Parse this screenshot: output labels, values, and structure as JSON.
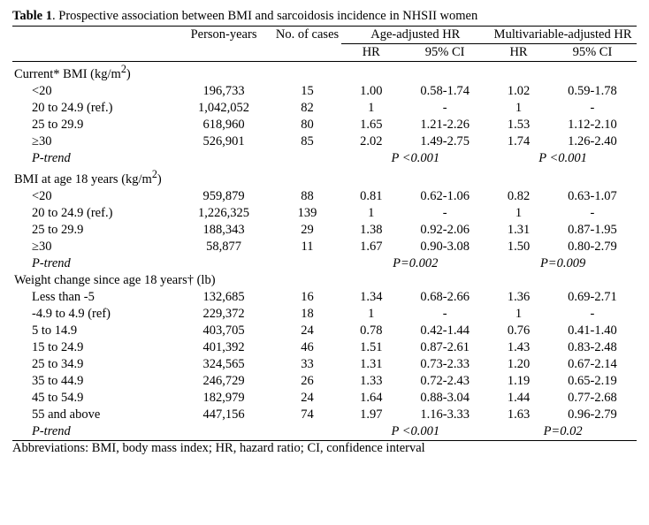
{
  "title_label": "Table 1",
  "title_rest": ". Prospective association between BMI and sarcoidosis incidence in NHSII women",
  "head": {
    "py": "Person-years",
    "nc": "No. of cases",
    "age": "Age-adjusted HR",
    "mv": "Multivariable-adjusted HR",
    "hr": "HR",
    "ci": "95% CI"
  },
  "sections": [
    {
      "label_html": "Current* BMI (kg/m<sup>2</sup>)",
      "rows": [
        {
          "cat": "<20",
          "py": "196,733",
          "n": "15",
          "ahr": "1.00",
          "aci": "0.58-1.74",
          "mhr": "1.02",
          "mci": "0.59-1.78"
        },
        {
          "cat": "20 to 24.9 (ref.)",
          "py": "1,042,052",
          "n": "82",
          "ahr": "1",
          "aci": "-",
          "mhr": "1",
          "mci": "-"
        },
        {
          "cat": "25 to 29.9",
          "py": "618,960",
          "n": "80",
          "ahr": "1.65",
          "aci": "1.21-2.26",
          "mhr": "1.53",
          "mci": "1.12-2.10"
        },
        {
          "cat": "≥30",
          "py": "526,901",
          "n": "85",
          "ahr": "2.02",
          "aci": "1.49-2.75",
          "mhr": "1.74",
          "mci": "1.26-2.40"
        }
      ],
      "ptrend_label": "P-trend",
      "ptrend_age": "P <0.001",
      "ptrend_mv": "P <0.001"
    },
    {
      "label_html": "BMI at age 18 years (kg/m<sup>2</sup>)",
      "rows": [
        {
          "cat": "<20",
          "py": "959,879",
          "n": "88",
          "ahr": "0.81",
          "aci": "0.62-1.06",
          "mhr": "0.82",
          "mci": "0.63-1.07"
        },
        {
          "cat": "20 to 24.9 (ref.)",
          "py": "1,226,325",
          "n": "139",
          "ahr": "1",
          "aci": "-",
          "mhr": "1",
          "mci": "-"
        },
        {
          "cat": "25 to 29.9",
          "py": "188,343",
          "n": "29",
          "ahr": "1.38",
          "aci": "0.92-2.06",
          "mhr": "1.31",
          "mci": "0.87-1.95"
        },
        {
          "cat": "≥30",
          "py": "58,877",
          "n": "11",
          "ahr": "1.67",
          "aci": "0.90-3.08",
          "mhr": "1.50",
          "mci": "0.80-2.79"
        }
      ],
      "ptrend_label": "P-trend",
      "ptrend_age": "P=0.002",
      "ptrend_mv": "P=0.009"
    },
    {
      "label_html": "Weight change since age 18 years† (lb)",
      "rows": [
        {
          "cat": "Less than -5",
          "py": "132,685",
          "n": "16",
          "ahr": "1.34",
          "aci": "0.68-2.66",
          "mhr": "1.36",
          "mci": "0.69-2.71"
        },
        {
          "cat": "-4.9 to 4.9 (ref)",
          "py": "229,372",
          "n": "18",
          "ahr": "1",
          "aci": "-",
          "mhr": "1",
          "mci": "-"
        },
        {
          "cat": "5 to 14.9",
          "py": "403,705",
          "n": "24",
          "ahr": "0.78",
          "aci": "0.42-1.44",
          "mhr": "0.76",
          "mci": "0.41-1.40"
        },
        {
          "cat": "15 to 24.9",
          "py": "401,392",
          "n": "46",
          "ahr": "1.51",
          "aci": "0.87-2.61",
          "mhr": "1.43",
          "mci": "0.83-2.48"
        },
        {
          "cat": "25 to 34.9",
          "py": "324,565",
          "n": "33",
          "ahr": "1.31",
          "aci": "0.73-2.33",
          "mhr": "1.20",
          "mci": "0.67-2.14"
        },
        {
          "cat": "35 to 44.9",
          "py": "246,729",
          "n": "26",
          "ahr": "1.33",
          "aci": "0.72-2.43",
          "mhr": "1.19",
          "mci": "0.65-2.19"
        },
        {
          "cat": "45 to 54.9",
          "py": "182,979",
          "n": "24",
          "ahr": "1.64",
          "aci": "0.88-3.04",
          "mhr": "1.44",
          "mci": "0.77-2.68"
        },
        {
          "cat": "55 and above",
          "py": "447,156",
          "n": "74",
          "ahr": "1.97",
          "aci": "1.16-3.33",
          "mhr": "1.63",
          "mci": "0.96-2.79"
        }
      ],
      "ptrend_label": "P-trend",
      "ptrend_age": "P <0.001",
      "ptrend_mv": "P=0.02"
    }
  ],
  "abbr": "Abbreviations: BMI, body mass index; HR, hazard ratio; CI, confidence interval"
}
